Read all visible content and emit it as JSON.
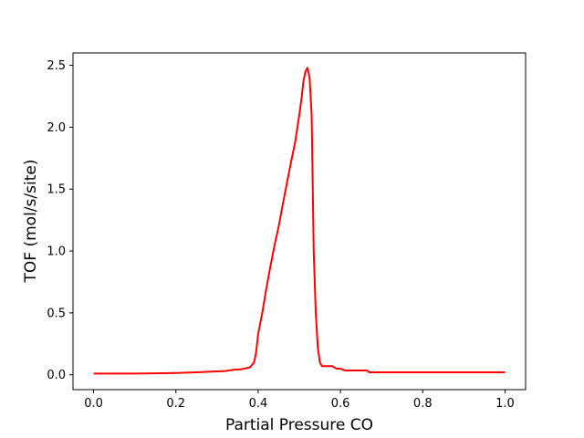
{
  "chart_data": {
    "type": "line",
    "title": "",
    "xlabel": "Partial Pressure CO",
    "ylabel": "TOF (mol/s/site)",
    "xlim": [
      -0.05,
      1.05
    ],
    "ylim": [
      -0.12,
      2.6
    ],
    "xticks": [
      0.0,
      0.2,
      0.4,
      0.6,
      0.8,
      1.0
    ],
    "xtick_labels": [
      "0.0",
      "0.2",
      "0.4",
      "0.6",
      "0.8",
      "1.0"
    ],
    "yticks": [
      0.0,
      0.5,
      1.0,
      1.5,
      2.0,
      2.5
    ],
    "ytick_labels": [
      "0.0",
      "0.5",
      "1.0",
      "1.5",
      "2.0",
      "2.5"
    ],
    "grid": false,
    "legend": "none",
    "series": [
      {
        "color": "#ff0000",
        "x": [
          0.0,
          0.05,
          0.1,
          0.15,
          0.2,
          0.25,
          0.28,
          0.32,
          0.34,
          0.36,
          0.38,
          0.39,
          0.395,
          0.4,
          0.41,
          0.42,
          0.43,
          0.44,
          0.45,
          0.46,
          0.47,
          0.48,
          0.49,
          0.5,
          0.505,
          0.51,
          0.515,
          0.52,
          0.525,
          0.53,
          0.535,
          0.54,
          0.545,
          0.55,
          0.555,
          0.56,
          0.58,
          0.59,
          0.6,
          0.61,
          0.65,
          0.665,
          0.67,
          0.8,
          1.0
        ],
        "y": [
          0.01,
          0.01,
          0.01,
          0.012,
          0.015,
          0.02,
          0.025,
          0.03,
          0.04,
          0.045,
          0.06,
          0.1,
          0.18,
          0.33,
          0.5,
          0.7,
          0.88,
          1.05,
          1.2,
          1.38,
          1.55,
          1.72,
          1.88,
          2.1,
          2.22,
          2.37,
          2.45,
          2.48,
          2.4,
          2.1,
          1.0,
          0.5,
          0.22,
          0.1,
          0.07,
          0.07,
          0.07,
          0.05,
          0.05,
          0.035,
          0.035,
          0.035,
          0.02,
          0.02,
          0.02
        ]
      }
    ]
  }
}
